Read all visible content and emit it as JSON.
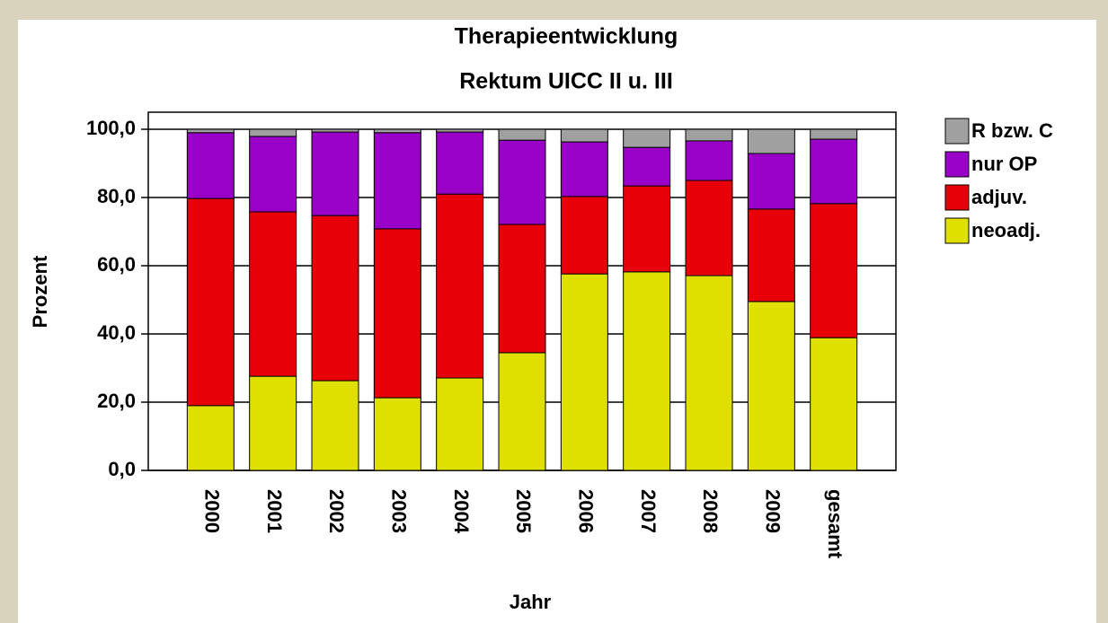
{
  "chart_data": {
    "type": "stacked_bar",
    "title": "Therapieentwicklung",
    "subtitle": "Rektum UICC II u. III",
    "x_label": "Jahr",
    "y_label": "Prozent",
    "categories": [
      "2000",
      "2001",
      "2002",
      "2003",
      "2004",
      "2005",
      "2006",
      "2007",
      "2008",
      "2009",
      "gesamt"
    ],
    "series": [
      {
        "name": "neoadj.",
        "color": "#e0e000",
        "values": [
          19,
          27.6,
          26.3,
          21.3,
          27.1,
          34.5,
          57.6,
          58.2,
          57.1,
          49.5,
          38.9
        ]
      },
      {
        "name": "adjuv.",
        "color": "#e80008",
        "values": [
          60.7,
          48.2,
          48.4,
          49.5,
          53.9,
          37.6,
          22.7,
          25.2,
          27.9,
          27.1,
          39.3
        ]
      },
      {
        "name": "nur OP",
        "color": "#9900c8",
        "values": [
          19.3,
          22.1,
          24.5,
          28.2,
          18.2,
          24.7,
          16.0,
          11.3,
          11.6,
          16.3,
          18.9
        ]
      },
      {
        "name": "R bzw. C",
        "color": "#a0a0a0",
        "values": [
          1.0,
          2.1,
          0.8,
          1.0,
          0.8,
          3.2,
          3.7,
          5.3,
          3.4,
          7.1,
          2.9
        ]
      }
    ],
    "ylim": [
      0,
      105
    ],
    "yticks": [
      {
        "value": 0,
        "label": "0,0"
      },
      {
        "value": 20,
        "label": "20,0"
      },
      {
        "value": 40,
        "label": "40,0"
      },
      {
        "value": 60,
        "label": "60,0"
      },
      {
        "value": 80,
        "label": "80,0"
      },
      {
        "value": 100,
        "label": "100,0"
      }
    ],
    "grid": true,
    "legend": "right"
  }
}
